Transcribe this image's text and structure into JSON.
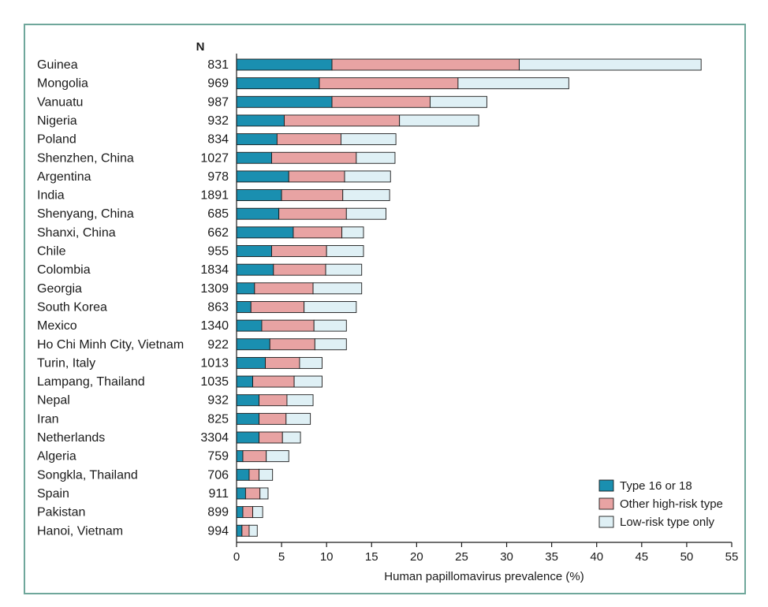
{
  "chart_data": {
    "type": "bar",
    "orientation": "horizontal",
    "stacked": true,
    "n_header": "N",
    "xlabel": "Human papillomavirus prevalence (%)",
    "xlim": [
      0,
      55
    ],
    "xticks": [
      0,
      5,
      10,
      15,
      20,
      25,
      30,
      35,
      40,
      45,
      50,
      55
    ],
    "legend_position": "bottom-right",
    "categories": [
      "Guinea",
      "Mongolia",
      "Vanuatu",
      "Nigeria",
      "Poland",
      "Shenzhen, China",
      "Argentina",
      "India",
      "Shenyang, China",
      "Shanxi, China",
      "Chile",
      "Colombia",
      "Georgia",
      "South Korea",
      "Mexico",
      "Ho Chi Minh City, Vietnam",
      "Turin, Italy",
      "Lampang, Thailand",
      "Nepal",
      "Iran",
      "Netherlands",
      "Algeria",
      "Songkla, Thailand",
      "Spain",
      "Pakistan",
      "Hanoi, Vietnam"
    ],
    "n_values": [
      "831",
      "969",
      "987",
      "932",
      "834",
      "1027",
      "978",
      "1891",
      "685",
      "662",
      "955",
      "1834",
      "1309",
      "863",
      "1340",
      "922",
      "1013",
      "1035",
      "932",
      "825",
      "3304",
      "759",
      "706",
      "911",
      "899",
      "994"
    ],
    "series": [
      {
        "name": "Type 16 or 18",
        "color": "#1a8fb0",
        "values": [
          10.6,
          9.2,
          10.6,
          5.3,
          4.5,
          3.9,
          5.8,
          5.0,
          4.7,
          6.3,
          3.9,
          4.1,
          2.0,
          1.6,
          2.8,
          3.7,
          3.2,
          1.8,
          2.5,
          2.5,
          2.5,
          0.7,
          1.4,
          1.0,
          0.7,
          0.6
        ]
      },
      {
        "name": "Other high-risk type",
        "color": "#e8a3a3",
        "values": [
          20.8,
          15.4,
          10.9,
          12.8,
          7.1,
          9.4,
          6.2,
          6.8,
          7.5,
          5.4,
          6.1,
          5.8,
          6.5,
          5.9,
          5.8,
          5.0,
          3.8,
          4.6,
          3.1,
          3.0,
          2.6,
          2.6,
          1.1,
          1.6,
          1.1,
          0.8
        ]
      },
      {
        "name": "Low-risk type only",
        "color": "#dff0f5",
        "values": [
          20.2,
          12.3,
          6.3,
          8.8,
          6.1,
          4.3,
          5.1,
          5.2,
          4.4,
          2.4,
          4.1,
          4.0,
          5.4,
          5.8,
          3.6,
          3.5,
          2.5,
          3.1,
          2.9,
          2.7,
          2.0,
          2.5,
          1.5,
          0.9,
          1.1,
          0.9
        ]
      }
    ]
  }
}
